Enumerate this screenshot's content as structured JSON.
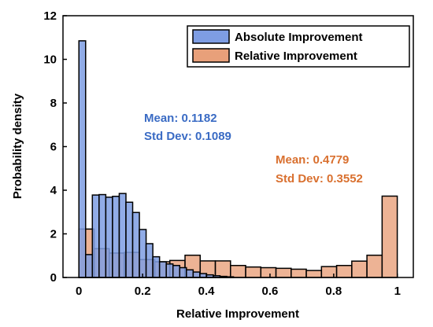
{
  "chart_data": {
    "type": "histogram",
    "title": "",
    "xlabel": "Relative Improvement",
    "ylabel": "Probability density",
    "xlim": [
      -0.05,
      1.05
    ],
    "ylim": [
      0,
      12
    ],
    "xticks": [
      0,
      0.2,
      0.4,
      0.6,
      0.8,
      1
    ],
    "xtick_labels": [
      "0",
      "0.2",
      "0.4",
      "0.6",
      "0.8",
      "1"
    ],
    "yticks": [
      0,
      2,
      4,
      6,
      8,
      10,
      12
    ],
    "ytick_labels": [
      "0",
      "2",
      "4",
      "6",
      "8",
      "10",
      "12"
    ],
    "grid": false,
    "legend_position": "top-right",
    "series": [
      {
        "name": "Absolute Improvement",
        "color": "#7e9de3",
        "bin_width": 0.0211,
        "bin_start": 0.0,
        "values": [
          10.85,
          1.05,
          3.78,
          3.8,
          3.68,
          3.72,
          3.85,
          3.45,
          2.98,
          2.2,
          1.55,
          0.95,
          0.72,
          0.62,
          0.55,
          0.45,
          0.35,
          0.25,
          0.18,
          0.12,
          0.08,
          0.05,
          0.03
        ]
      },
      {
        "name": "Relative Improvement",
        "color": "#e8a07a",
        "bin_width": 0.0476,
        "bin_start": 0.0,
        "values": [
          2.22,
          1.32,
          1.12,
          1.15,
          0.82,
          0.72,
          0.78,
          1.02,
          0.76,
          0.76,
          0.55,
          0.48,
          0.45,
          0.42,
          0.38,
          0.32,
          0.5,
          0.55,
          0.75,
          1.02,
          3.73
        ]
      }
    ],
    "annotations": [
      {
        "lines": [
          "Mean: 0.1182",
          "Std Dev: 0.1089"
        ],
        "color": "#3a6bc4"
      },
      {
        "lines": [
          "Mean: 0.4779",
          "Std Dev: 0.3552"
        ],
        "color": "#d9702f"
      }
    ]
  }
}
